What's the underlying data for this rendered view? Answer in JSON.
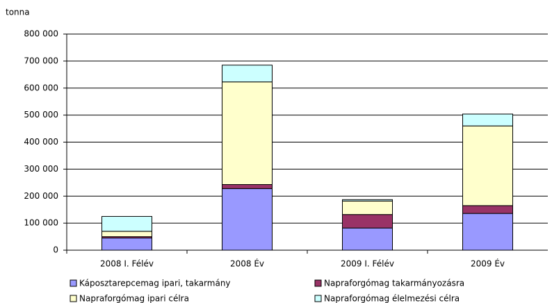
{
  "chart_data": {
    "type": "stacked_bar",
    "y_label": "tonna",
    "categories": [
      "2008 I. Félév",
      "2008 Év",
      "2009 I. Félév",
      "2009 Év"
    ],
    "series": [
      {
        "name": "Káposztarepcemag ipari, takarmány",
        "color": "#9999ff",
        "values": [
          45000,
          228000,
          82000,
          136000
        ]
      },
      {
        "name": "Napraforgómag takarmányozásra",
        "color": "#993366",
        "values": [
          5000,
          15000,
          50000,
          29000
        ]
      },
      {
        "name": "Napraforgómag ipari célra",
        "color": "#ffffcc",
        "values": [
          20000,
          380000,
          50000,
          295000
        ]
      },
      {
        "name": "Napraforgómag élelmezési célra",
        "color": "#ccffff",
        "values": [
          55000,
          62000,
          5000,
          44000
        ]
      }
    ],
    "ylim": [
      0,
      800000
    ],
    "yticks": [
      0,
      {
        "value": 100000,
        "label": "100 000"
      },
      {
        "value": 200000,
        "label": "200 000"
      },
      {
        "value": 300000,
        "label": "300 000"
      },
      {
        "value": 400000,
        "label": "400 000"
      },
      {
        "value": 500000,
        "label": "500 000"
      },
      {
        "value": 600000,
        "label": "600 000"
      },
      {
        "value": 700000,
        "label": "700 000"
      },
      {
        "value": 800000,
        "label": "800 000"
      }
    ],
    "grid": true
  }
}
